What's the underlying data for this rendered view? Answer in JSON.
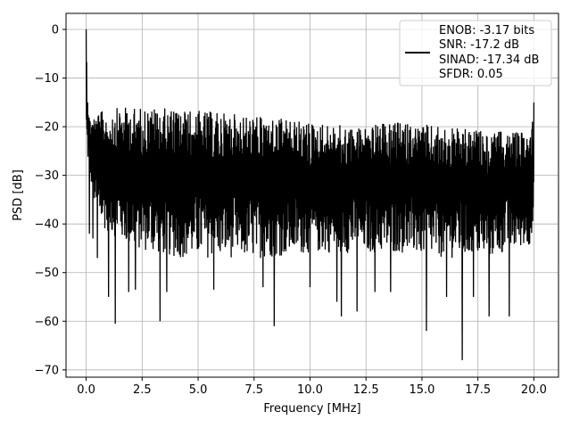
{
  "chart_data": {
    "type": "line",
    "title": "",
    "xlabel": "Frequency [MHz]",
    "ylabel": "PSD [dB]",
    "xlim": [
      -0.9,
      21.1
    ],
    "ylim": [
      -71.5,
      3.3
    ],
    "xticks": [
      0.0,
      2.5,
      5.0,
      7.5,
      10.0,
      12.5,
      15.0,
      17.5,
      20.0
    ],
    "xtick_labels": [
      "0.0",
      "2.5",
      "5.0",
      "7.5",
      "10.0",
      "12.5",
      "15.0",
      "17.5",
      "20.0"
    ],
    "yticks": [
      0,
      -10,
      -20,
      -30,
      -40,
      -50,
      -60,
      -70
    ],
    "ytick_labels": [
      "0",
      "−10",
      "−20",
      "−30",
      "−40",
      "−50",
      "−60",
      "−70"
    ],
    "grid": true,
    "legend_placement": "top-right",
    "legend_lines": [
      "ENOB: -3.17 bits",
      "SNR: -17.2 dB",
      "SINAD: -17.34 dB",
      "SFDR: 0.05"
    ],
    "series": [
      {
        "color": "#000000",
        "x_start": 0.0,
        "x_end": 20.0,
        "envelope_upper": [
          [
            0.0,
            0.0
          ],
          [
            0.05,
            -10
          ],
          [
            0.15,
            -18
          ],
          [
            0.5,
            -17
          ],
          [
            1.5,
            -16
          ],
          [
            3.0,
            -16
          ],
          [
            4.5,
            -16.5
          ],
          [
            6.0,
            -17
          ],
          [
            8.0,
            -18
          ],
          [
            10.0,
            -19
          ],
          [
            12.0,
            -20
          ],
          [
            14.0,
            -19
          ],
          [
            16.0,
            -20
          ],
          [
            18.0,
            -21
          ],
          [
            19.8,
            -21
          ],
          [
            20.0,
            -15
          ]
        ],
        "envelope_lower": [
          [
            0.0,
            -25
          ],
          [
            0.5,
            -40
          ],
          [
            2.0,
            -45
          ],
          [
            4.0,
            -47
          ],
          [
            6.0,
            -47
          ],
          [
            8.0,
            -47
          ],
          [
            10.0,
            -46
          ],
          [
            12.0,
            -46
          ],
          [
            14.0,
            -46
          ],
          [
            16.0,
            -47
          ],
          [
            18.0,
            -47
          ],
          [
            20.0,
            -44
          ]
        ],
        "deep_minima": [
          [
            0.15,
            -42
          ],
          [
            0.3,
            -43
          ],
          [
            0.5,
            -47
          ],
          [
            1.0,
            -55
          ],
          [
            1.3,
            -60.5
          ],
          [
            1.9,
            -54
          ],
          [
            2.2,
            -53.5
          ],
          [
            3.3,
            -60
          ],
          [
            3.6,
            -54
          ],
          [
            5.7,
            -53.5
          ],
          [
            7.9,
            -53
          ],
          [
            8.4,
            -61
          ],
          [
            10.0,
            -53
          ],
          [
            11.2,
            -56
          ],
          [
            11.4,
            -59
          ],
          [
            12.1,
            -58
          ],
          [
            12.9,
            -54
          ],
          [
            13.6,
            -54
          ],
          [
            15.2,
            -62
          ],
          [
            16.1,
            -55
          ],
          [
            16.8,
            -68
          ],
          [
            17.3,
            -55
          ],
          [
            18.0,
            -59
          ],
          [
            18.9,
            -59
          ]
        ]
      }
    ]
  }
}
